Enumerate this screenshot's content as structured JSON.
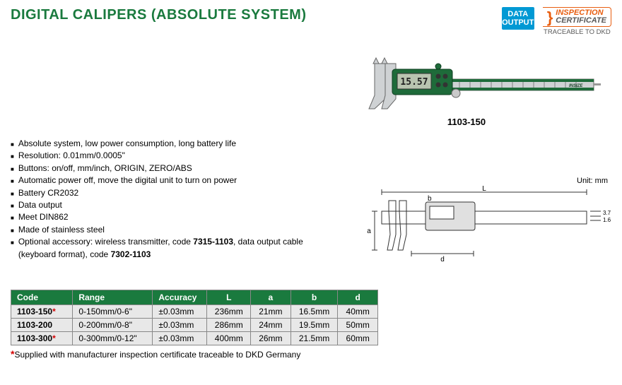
{
  "title": "DIGITAL CALIPERS (ABSOLUTE SYSTEM)",
  "badges": {
    "data_output_line1": "DATA",
    "data_output_line2": "OUTPUT",
    "data_output_bg": "#0099d4",
    "inspection_line1": "INSPECTION",
    "inspection_line2": "CERTIFICATE",
    "inspection_color": "#e85d0f",
    "traceable": "TRACEABLE TO DKD"
  },
  "product": {
    "image_label": "1103-150",
    "display_reading": "15.57",
    "body_color": "#1e6b3a",
    "steel_color": "#cfd2d4"
  },
  "features": [
    "Absolute system, low power consumption, long battery life",
    "Resolution: 0.01mm/0.0005\"",
    "Buttons: on/off, mm/inch, ORIGIN, ZERO/ABS",
    "Automatic power off, move the digital unit to turn on power",
    "Battery CR2032",
    "Data output",
    "Meet DIN862",
    "Made of stainless steel"
  ],
  "feature_accessory": {
    "prefix": "Optional accessory: wireless transmitter, code ",
    "code1": "7315-1103",
    "mid": ", data output cable (keyboard format), code ",
    "code2": "7302-1103"
  },
  "diagram": {
    "unit_label": "Unit: mm",
    "labels": {
      "L": "L",
      "a": "a",
      "b": "b",
      "d": "d",
      "h1": "3.7",
      "h2": "1.6"
    }
  },
  "table": {
    "header_bg": "#1a7a3e",
    "row_bg": "#e8e8e8",
    "columns": [
      "Code",
      "Range",
      "Accuracy",
      "L",
      "a",
      "b",
      "d"
    ],
    "col_align": [
      "left",
      "left",
      "left",
      "center",
      "center",
      "center",
      "center"
    ],
    "col_widths": [
      "85px",
      "110px",
      "75px",
      "60px",
      "55px",
      "65px",
      "55px"
    ],
    "rows": [
      {
        "code": "1103-150",
        "star": true,
        "cells": [
          "0-150mm/0-6\"",
          "±0.03mm",
          "236mm",
          "21mm",
          "16.5mm",
          "40mm"
        ]
      },
      {
        "code": "1103-200",
        "star": false,
        "cells": [
          "0-200mm/0-8\"",
          "±0.03mm",
          "286mm",
          "24mm",
          "19.5mm",
          "50mm"
        ]
      },
      {
        "code": "1103-300",
        "star": true,
        "cells": [
          "0-300mm/0-12\"",
          "±0.03mm",
          "400mm",
          "26mm",
          "21.5mm",
          "60mm"
        ]
      }
    ]
  },
  "footnote": "Supplied with manufacturer inspection certificate traceable to DKD Germany"
}
